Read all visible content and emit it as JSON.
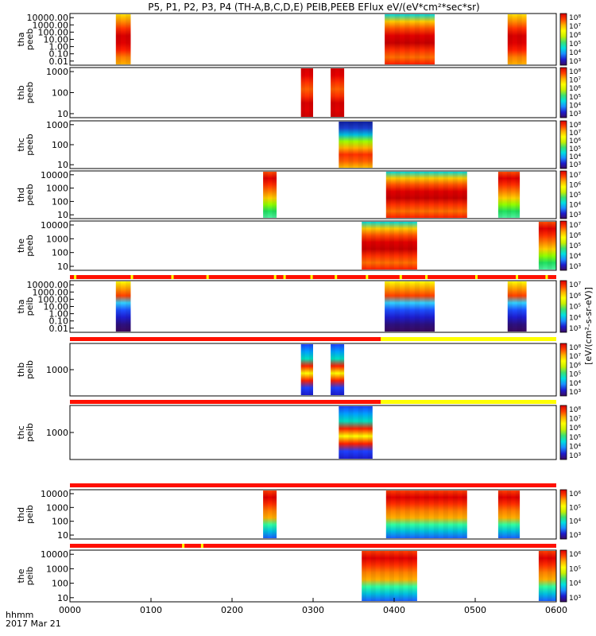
{
  "chart_data": {
    "type": "heatmap",
    "title": "P5, P1, P2, P3, P4 (TH-A,B,C,D,E) PEIB,PEEB EFlux eV/(eV*cm²*sec*sr)",
    "xlabel": "hhmm",
    "date_label": "2017 Mar 21",
    "x_range_minutes": [
      0,
      360
    ],
    "x_ticks": [
      {
        "label": "0000",
        "minutes": 0
      },
      {
        "label": "0100",
        "minutes": 60
      },
      {
        "label": "0200",
        "minutes": 120
      },
      {
        "label": "0300",
        "minutes": 180
      },
      {
        "label": "0400",
        "minutes": 240
      },
      {
        "label": "0500",
        "minutes": 300
      },
      {
        "label": "0600",
        "minutes": 360
      }
    ],
    "colorbar_label": "[eV/(cm²-s-sr-eV)]",
    "colormap_stops": [
      "#3b0a5f",
      "#1d1dcf",
      "#1b8fff",
      "#00e0e0",
      "#3ee070",
      "#c8f000",
      "#ffff00",
      "#ffb000",
      "#ff4000",
      "#d90000"
    ],
    "panels": [
      {
        "ylabel_line1": "tha",
        "ylabel_line2": "peeb",
        "y_ticks": [
          "10000.00",
          "1000.00",
          "100.00",
          "10.00",
          "1.00",
          "0.10",
          "0.01"
        ],
        "cb_ticks": [
          "10⁸",
          "10⁷",
          "10⁶",
          "10⁵",
          "10⁴",
          "10³"
        ],
        "mode_bar": null,
        "blocks": [
          {
            "t0": 34,
            "t1": 45,
            "profile": "hot_ion"
          },
          {
            "t0": 233,
            "t1": 270,
            "profile": "mixed"
          },
          {
            "t0": 324,
            "t1": 338,
            "profile": "hot_ion"
          }
        ]
      },
      {
        "ylabel_line1": "thb",
        "ylabel_line2": "peeb",
        "y_ticks": [
          "1000",
          "100",
          "10"
        ],
        "cb_ticks": [
          "10⁸",
          "10⁷",
          "10⁶",
          "10⁵",
          "10⁴",
          "10³"
        ],
        "mode_bar": null,
        "blocks": [
          {
            "t0": 171,
            "t1": 180,
            "profile": "warm"
          },
          {
            "t0": 193,
            "t1": 203,
            "profile": "warm"
          }
        ]
      },
      {
        "ylabel_line1": "thc",
        "ylabel_line2": "peeb",
        "y_ticks": [
          "1000",
          "100",
          "10"
        ],
        "cb_ticks": [
          "10⁸",
          "10⁷",
          "10⁶",
          "10⁵",
          "10⁴",
          "10³"
        ],
        "mode_bar": null,
        "blocks": [
          {
            "t0": 199,
            "t1": 224,
            "profile": "cold_top"
          }
        ]
      },
      {
        "ylabel_line1": "thd",
        "ylabel_line2": "peeb",
        "y_ticks": [
          "10000",
          "1000",
          "100",
          "10"
        ],
        "cb_ticks": [
          "10⁷",
          "10⁶",
          "10⁵",
          "10⁴",
          "10³"
        ],
        "mode_bar": null,
        "blocks": [
          {
            "t0": 143,
            "t1": 153,
            "profile": "green_low"
          },
          {
            "t0": 234,
            "t1": 294,
            "profile": "mixed"
          },
          {
            "t0": 317,
            "t1": 333,
            "profile": "green_low"
          }
        ]
      },
      {
        "ylabel_line1": "the",
        "ylabel_line2": "peeb",
        "y_ticks": [
          "10000",
          "1000",
          "100",
          "10"
        ],
        "cb_ticks": [
          "10⁷",
          "10⁶",
          "10⁵",
          "10⁴",
          "10³"
        ],
        "mode_bar": null,
        "blocks": [
          {
            "t0": 216,
            "t1": 257,
            "profile": "mixed"
          },
          {
            "t0": 347,
            "t1": 360,
            "profile": "green_low"
          }
        ]
      },
      {
        "ylabel_line1": "tha",
        "ylabel_line2": "peib",
        "y_ticks": [
          "10000.00",
          "1000.00",
          "100.00",
          "10.00",
          "1.00",
          "0.10",
          "0.01"
        ],
        "cb_ticks": [
          "10⁷",
          "10⁶",
          "10⁵",
          "10⁴",
          "10³"
        ],
        "mode_bar": "red_yellow_ticks",
        "blocks": [
          {
            "t0": 34,
            "t1": 45,
            "profile": "ion_blue"
          },
          {
            "t0": 233,
            "t1": 270,
            "profile": "ion_blue"
          },
          {
            "t0": 324,
            "t1": 338,
            "profile": "ion_blue"
          }
        ]
      },
      {
        "ylabel_line1": "thb",
        "ylabel_line2": "peib",
        "y_ticks": [
          "1000"
        ],
        "cb_ticks": [
          "10⁸",
          "10⁷",
          "10⁶",
          "10⁵",
          "10⁴",
          "10³"
        ],
        "mode_bar": "red_then_yellow",
        "blocks": [
          {
            "t0": 171,
            "t1": 180,
            "profile": "band_red"
          },
          {
            "t0": 193,
            "t1": 203,
            "profile": "band_red"
          }
        ]
      },
      {
        "ylabel_line1": "thc",
        "ylabel_line2": "peib",
        "y_ticks": [
          "1000"
        ],
        "cb_ticks": [
          "10⁸",
          "10⁷",
          "10⁶",
          "10⁵",
          "10⁴",
          "10³"
        ],
        "mode_bar": "red_then_yellow",
        "blocks": [
          {
            "t0": 199,
            "t1": 224,
            "profile": "band_red"
          }
        ]
      },
      {
        "ylabel_line1": "thd",
        "ylabel_line2": "peib",
        "y_ticks": [
          "10000",
          "1000",
          "100",
          "10"
        ],
        "cb_ticks": [
          "10⁶",
          "10⁵",
          "10⁴",
          "10³"
        ],
        "mode_bar": "all_red",
        "blocks": [
          {
            "t0": 143,
            "t1": 153,
            "profile": "ion_red"
          },
          {
            "t0": 234,
            "t1": 294,
            "profile": "ion_red"
          },
          {
            "t0": 317,
            "t1": 333,
            "profile": "ion_red"
          }
        ]
      },
      {
        "ylabel_line1": "the",
        "ylabel_line2": "peib",
        "y_ticks": [
          "10000",
          "1000",
          "100",
          "10"
        ],
        "cb_ticks": [
          "10⁶",
          "10⁵",
          "10⁴",
          "10³"
        ],
        "mode_bar": "red_two_yellow",
        "blocks": [
          {
            "t0": 216,
            "t1": 257,
            "profile": "ion_red"
          },
          {
            "t0": 347,
            "t1": 360,
            "profile": "ion_red"
          }
        ]
      }
    ]
  }
}
